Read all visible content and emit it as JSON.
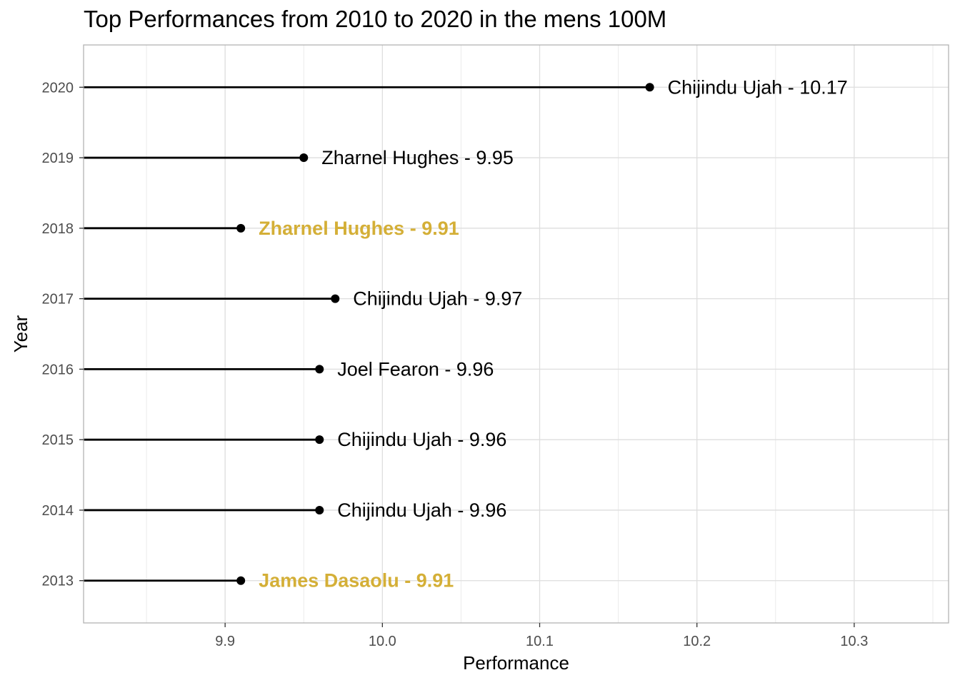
{
  "chart_data": {
    "type": "lollipop",
    "title": "Top Performances from 2010 to 2020 in the mens 100M",
    "xlabel": "Performance",
    "ylabel": "Year",
    "xlim": [
      9.81,
      10.36
    ],
    "x_ticks": [
      "9.9",
      "10.0",
      "10.1",
      "10.2",
      "10.3"
    ],
    "x_tick_values": [
      9.9,
      10.0,
      10.1,
      10.2,
      10.3
    ],
    "categories": [
      "2013",
      "2014",
      "2015",
      "2016",
      "2017",
      "2018",
      "2019",
      "2020"
    ],
    "points": [
      {
        "year": "2013",
        "athlete": "James Dasaolu",
        "value": 9.91,
        "label": "James Dasaolu - 9.91",
        "highlight": true
      },
      {
        "year": "2014",
        "athlete": "Chijindu Ujah",
        "value": 9.96,
        "label": "Chijindu Ujah - 9.96",
        "highlight": false
      },
      {
        "year": "2015",
        "athlete": "Chijindu Ujah",
        "value": 9.96,
        "label": "Chijindu Ujah - 9.96",
        "highlight": false
      },
      {
        "year": "2016",
        "athlete": "Joel Fearon",
        "value": 9.96,
        "label": "Joel Fearon - 9.96",
        "highlight": false
      },
      {
        "year": "2017",
        "athlete": "Chijindu Ujah",
        "value": 9.97,
        "label": "Chijindu Ujah - 9.97",
        "highlight": false
      },
      {
        "year": "2018",
        "athlete": "Zharnel Hughes",
        "value": 9.91,
        "label": "Zharnel Hughes - 9.91",
        "highlight": true
      },
      {
        "year": "2019",
        "athlete": "Zharnel Hughes",
        "value": 9.95,
        "label": "Zharnel Hughes - 9.95",
        "highlight": false
      },
      {
        "year": "2020",
        "athlete": "Chijindu Ujah",
        "value": 10.17,
        "label": "Chijindu Ujah - 10.17",
        "highlight": false
      }
    ],
    "grid": true,
    "legend": "none",
    "colors": {
      "highlight": "#d4af37",
      "normal": "#000000",
      "grid_major": "#dedede",
      "grid_minor": "#ebebeb",
      "panel_border": "#b3b3b3",
      "tick_text": "#4d4d4d"
    }
  }
}
